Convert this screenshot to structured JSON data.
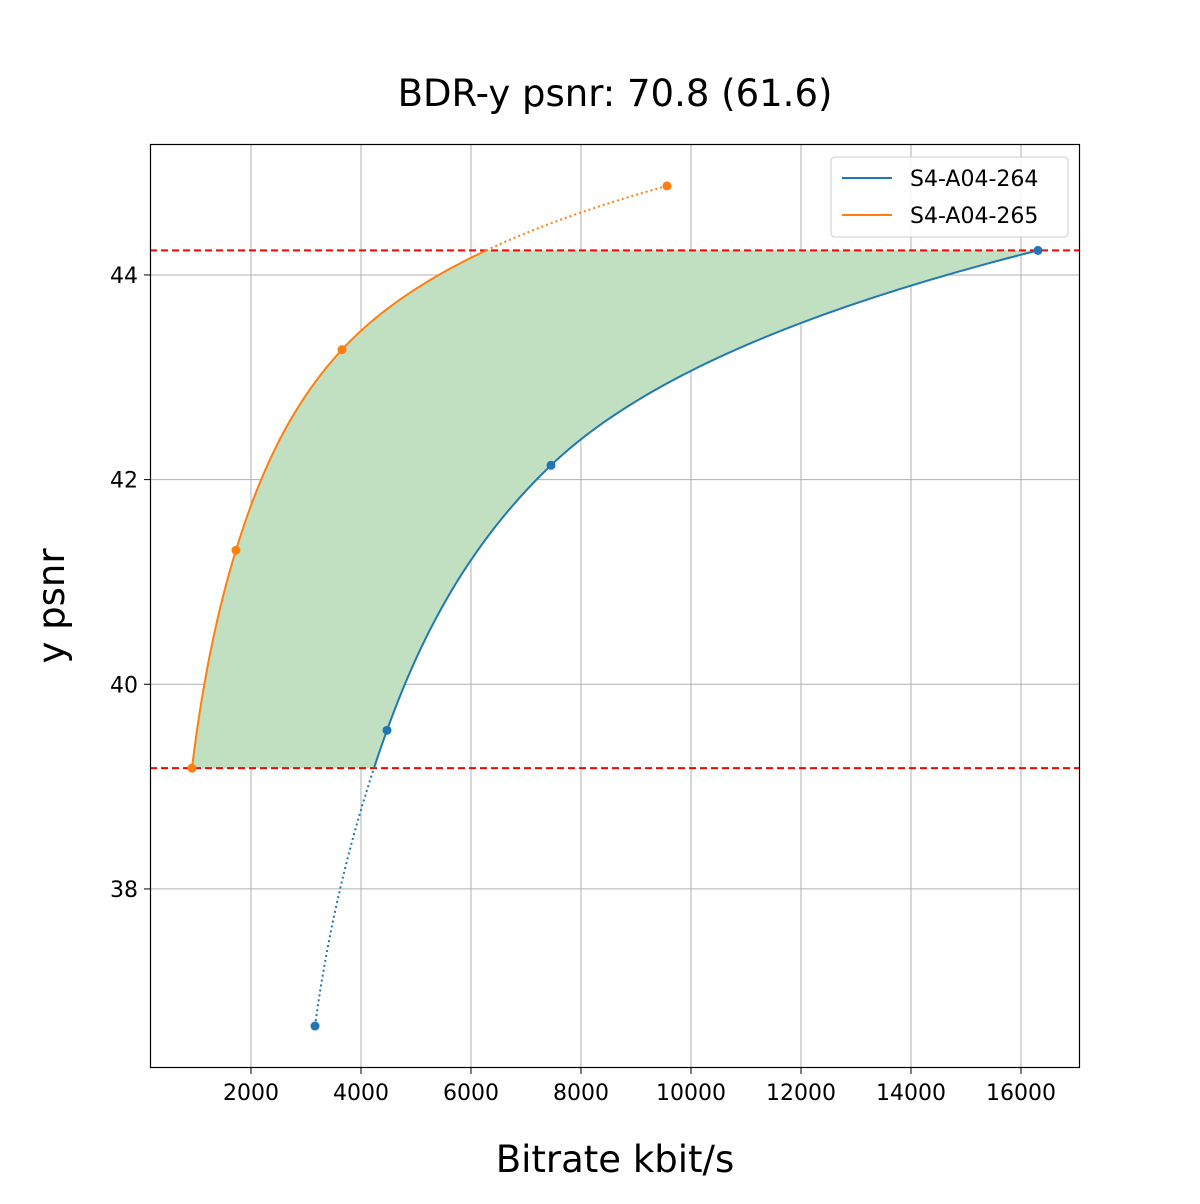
{
  "chart_data": {
    "type": "line",
    "title": "BDR-y psnr: 70.8 (61.6)",
    "xlabel": "Bitrate kbit/s",
    "ylabel": "y psnr",
    "xlim": [
      164,
      17073
    ],
    "ylim": [
      36.25,
      45.27
    ],
    "xticks": [
      2000,
      4000,
      6000,
      8000,
      10000,
      12000,
      14000,
      16000
    ],
    "yticks": [
      38,
      40,
      42,
      44
    ],
    "grid": true,
    "legend_position": "top-right",
    "series": [
      {
        "name": "S4-A04-264",
        "color": "#1f77b4",
        "x": [
          3164,
          4473,
          7455,
          16309
        ],
        "y": [
          36.66,
          39.55,
          42.14,
          44.24
        ]
      },
      {
        "name": "S4-A04-265",
        "color": "#ff7f0e",
        "x": [
          927,
          1727,
          3655,
          9564
        ],
        "y": [
          39.18,
          41.31,
          43.27,
          44.87
        ]
      }
    ],
    "overlap_range": [
      39.18,
      44.24
    ],
    "overlap_line_color": "#ff0000",
    "fill_color": "#c1dfc1"
  }
}
